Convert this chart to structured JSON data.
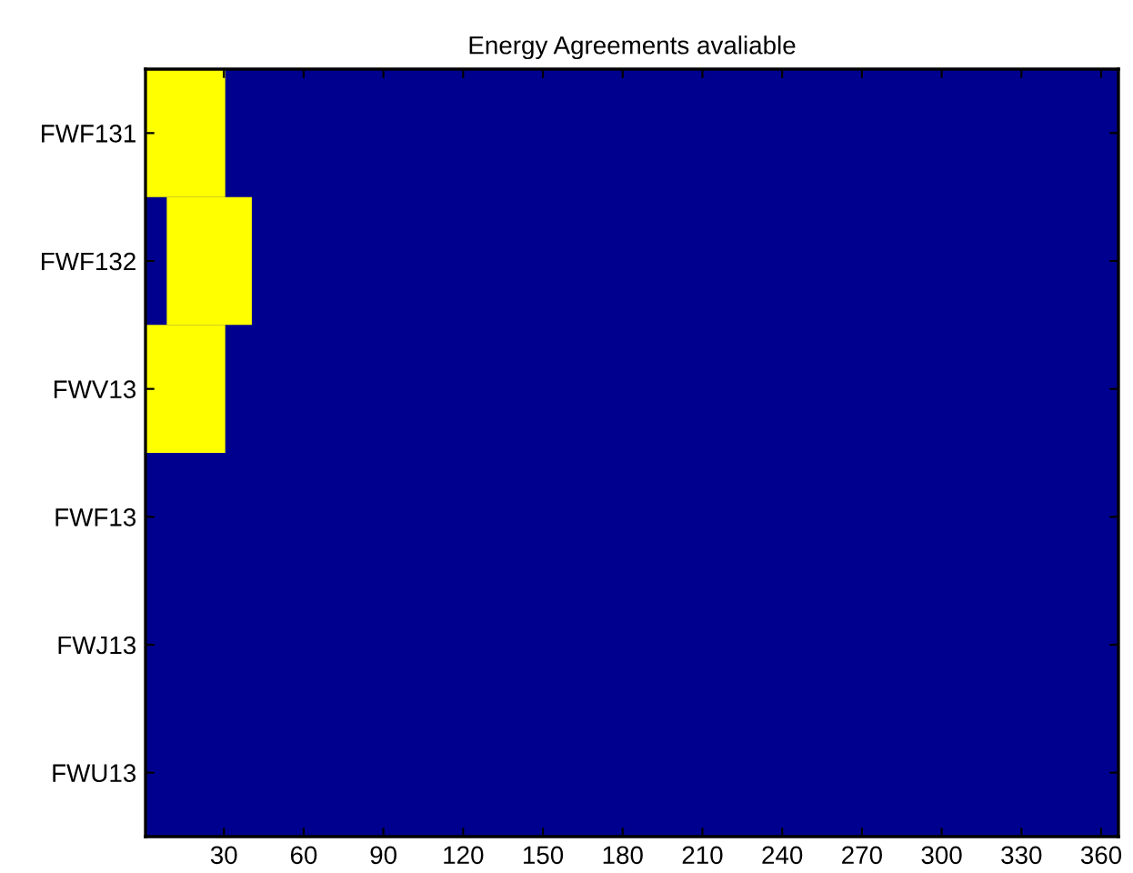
{
  "chart_data": {
    "type": "bar",
    "orientation": "horizontal",
    "title": "Energy Agreements avaliable",
    "categories": [
      "FWF131",
      "FWF132",
      "FWV13",
      "FWF13",
      "FWJ13",
      "FWU13"
    ],
    "base": [
      0.5,
      8.5,
      0.5,
      null,
      null,
      null
    ],
    "values": [
      30,
      32,
      30,
      null,
      null,
      null
    ],
    "color": "#ffff00",
    "xlim": [
      0.5,
      366.5
    ],
    "xticks": [
      30,
      60,
      90,
      120,
      150,
      180,
      210,
      240,
      270,
      300,
      330,
      360
    ],
    "grid": false,
    "legend": false
  }
}
